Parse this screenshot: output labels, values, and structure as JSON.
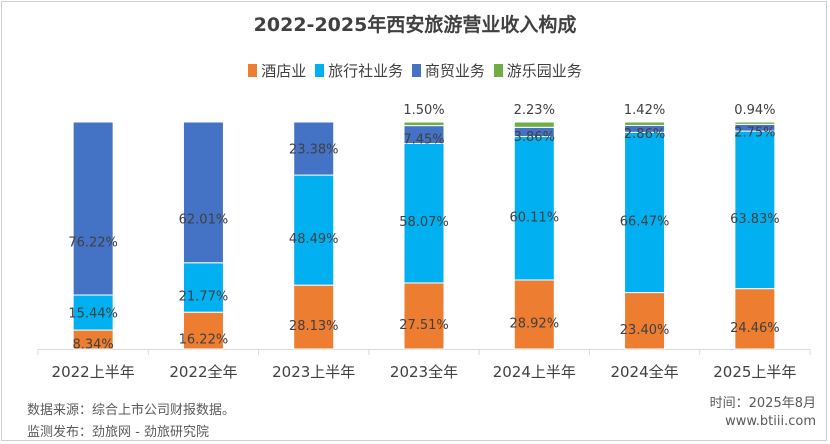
{
  "chart_data": {
    "type": "bar",
    "stacked": true,
    "title": "2022-2025年西安旅游营业收入构成",
    "categories": [
      "2022上半年",
      "2022全年",
      "2023上半年",
      "2023全年",
      "2024上半年",
      "2024全年",
      "2025上半年"
    ],
    "series": [
      {
        "name": "酒店业",
        "color": "#ED7D31",
        "values": [
          8.34,
          16.22,
          28.13,
          27.51,
          28.92,
          23.4,
          24.46
        ],
        "labels": [
          "8.34%",
          "16.22%",
          "28.13%",
          "27.51%",
          "28.92%",
          "23.40%",
          "24.46%"
        ]
      },
      {
        "name": "旅行社业务",
        "color": "#00B0F0",
        "values": [
          15.44,
          21.77,
          48.49,
          58.07,
          60.11,
          66.47,
          63.83
        ],
        "labels": [
          "15.44%",
          "21.77%",
          "48.49%",
          "58.07%",
          "60.11%",
          "66.47%",
          "63.83%"
        ]
      },
      {
        "name": "商贸业务",
        "color": "#4472C4",
        "values": [
          76.22,
          62.01,
          23.38,
          7.45,
          3.86,
          2.86,
          2.75
        ],
        "labels": [
          "76.22%",
          "62.01%",
          "23.38%",
          "7.45%",
          "3.86%",
          "2.86%",
          "2.75%"
        ]
      },
      {
        "name": "游乐园业务",
        "color": "#70AD47",
        "values": [
          0,
          0,
          0,
          1.5,
          2.23,
          1.42,
          0.94
        ],
        "labels": [
          "",
          "",
          "",
          "1.50%",
          "2.23%",
          "1.42%",
          "0.94%"
        ]
      }
    ],
    "ylim": [
      0,
      100
    ],
    "legend_position": "top",
    "grid": false
  },
  "footer": {
    "source": "数据来源：综合上市公司财报数据。",
    "publisher": "监测发布：劲旅网 - 劲旅研究院",
    "time": "时间：2025年8月",
    "website": "www.btiii.com"
  }
}
